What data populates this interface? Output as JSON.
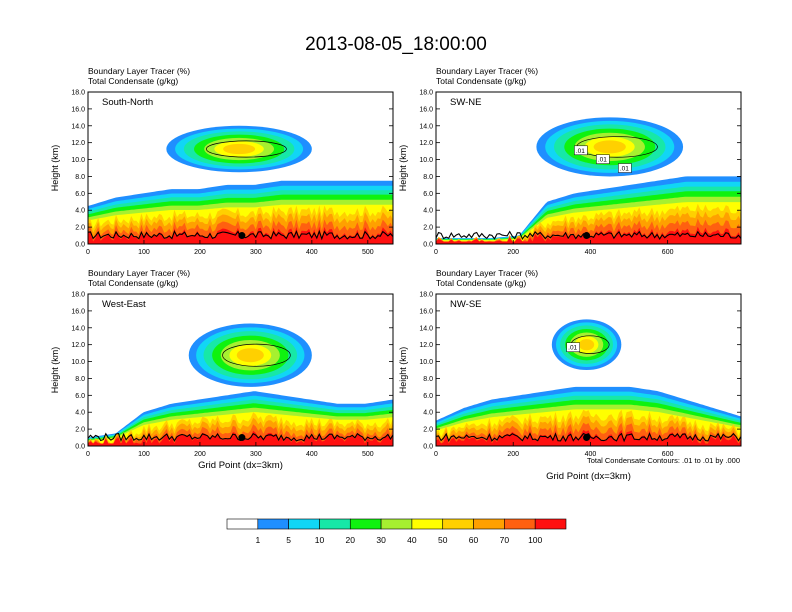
{
  "title": "2013-08-05_18:00:00",
  "footnote": "Total Condensate Contours: .01 to .01 by .000",
  "colors": {
    "scale": [
      "#ffffff",
      "#1f8fff",
      "#11d6f5",
      "#17e8a7",
      "#0ff20f",
      "#a6f030",
      "#ffff00",
      "#ffd000",
      "#ffa000",
      "#ff6010",
      "#ff1010"
    ],
    "contour": "#000000",
    "marker": "#000000"
  },
  "colorbar": {
    "labels": [
      "1",
      "5",
      "10",
      "20",
      "30",
      "40",
      "50",
      "60",
      "70",
      "100"
    ]
  },
  "chart_data": [
    {
      "type": "heatmap",
      "panel_label": "South-North",
      "header_line1": "Boundary Layer Tracer   (%)",
      "header_line2": "Total Condensate   (g/kg)",
      "ylabel": "Height (km)",
      "xlabel": "",
      "xlim": [
        0,
        545
      ],
      "ylim": [
        0,
        18
      ],
      "xticks": [
        0,
        100,
        200,
        300,
        400,
        500
      ],
      "yticks": [
        "0.0",
        "2.0",
        "4.0",
        "6.0",
        "8.0",
        "10.0",
        "12.0",
        "14.0",
        "16.0",
        "18.0"
      ],
      "marker_x": 275,
      "marker_y": 1.0,
      "boundary_layer_top_km": [
        4.5,
        5.5,
        6.0,
        6.5,
        6.5,
        7.0,
        7.0,
        7.5,
        7.5,
        7.5,
        7.5,
        7.5
      ],
      "upper_cloud": {
        "x_range": [
          140,
          400
        ],
        "height_km": [
          8.5,
          14.0
        ]
      }
    },
    {
      "type": "heatmap",
      "panel_label": "SW-NE",
      "header_line1": "Boundary Layer Tracer   (%)",
      "header_line2": "Total Condensate   (g/kg)",
      "ylabel": "Height (km)",
      "xlabel": "",
      "xlim": [
        0,
        790
      ],
      "ylim": [
        0,
        18
      ],
      "xticks": [
        0,
        200,
        400,
        600
      ],
      "yticks": [
        "0.0",
        "2.0",
        "4.0",
        "6.0",
        "8.0",
        "10.0",
        "12.0",
        "14.0",
        "16.0",
        "18.0"
      ],
      "marker_x": 390,
      "marker_y": 1.0,
      "boundary_layer_top_km": [
        0.7,
        0.7,
        0.7,
        1.0,
        5.0,
        6.0,
        6.5,
        7.0,
        7.5,
        8.0,
        8.0,
        8.0
      ],
      "upper_cloud": {
        "x_range": [
          260,
          640
        ],
        "height_km": [
          8.0,
          15.0
        ]
      },
      "contour_labels": [
        ".01",
        ".01",
        ".01"
      ]
    },
    {
      "type": "heatmap",
      "panel_label": "West-East",
      "header_line1": "Boundary Layer Tracer   (%)",
      "header_line2": "Total Condensate   (g/kg)",
      "ylabel": "Height (km)",
      "xlabel": "Grid Point (dx=3km)",
      "xlim": [
        0,
        545
      ],
      "ylim": [
        0,
        18
      ],
      "xticks": [
        0,
        100,
        200,
        300,
        400,
        500
      ],
      "yticks": [
        "0.0",
        "2.0",
        "4.0",
        "6.0",
        "8.0",
        "10.0",
        "12.0",
        "14.0",
        "16.0",
        "18.0"
      ],
      "marker_x": 275,
      "marker_y": 1.0,
      "boundary_layer_top_km": [
        1.0,
        1.5,
        4.0,
        5.0,
        5.5,
        6.0,
        6.5,
        6.0,
        5.5,
        5.0,
        5.0,
        5.5
      ],
      "upper_cloud": {
        "x_range": [
          180,
          400
        ],
        "height_km": [
          7.0,
          14.5
        ]
      }
    },
    {
      "type": "heatmap",
      "panel_label": "NW-SE",
      "header_line1": "Boundary Layer Tracer   (%)",
      "header_line2": "Total Condensate   (g/kg)",
      "ylabel": "Height (km)",
      "xlabel": "Grid Point (dx=3km)",
      "xlim": [
        0,
        790
      ],
      "ylim": [
        0,
        18
      ],
      "xticks": [
        0,
        200,
        400,
        600
      ],
      "yticks": [
        "0.0",
        "2.0",
        "4.0",
        "6.0",
        "8.0",
        "10.0",
        "12.0",
        "14.0",
        "16.0",
        "18.0"
      ],
      "marker_x": 390,
      "marker_y": 1.0,
      "boundary_layer_top_km": [
        3.0,
        4.5,
        5.5,
        6.0,
        6.5,
        7.0,
        7.0,
        7.0,
        6.5,
        5.5,
        4.5,
        3.5
      ],
      "upper_cloud": {
        "x_range": [
          300,
          480
        ],
        "height_km": [
          9.0,
          15.0
        ]
      },
      "contour_labels": [
        ".01"
      ]
    }
  ]
}
